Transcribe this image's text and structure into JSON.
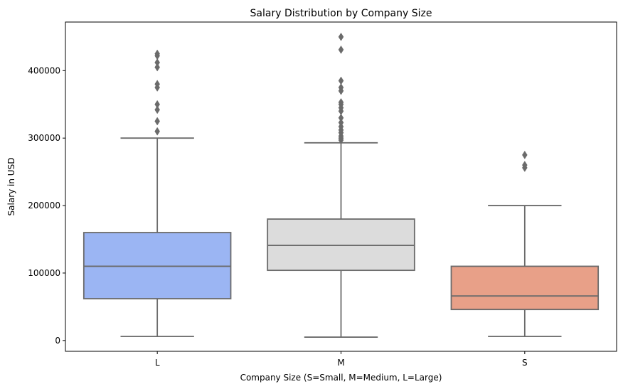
{
  "chart_data": {
    "type": "box",
    "title": "Salary Distribution by Company Size",
    "xlabel": "Company Size (S=Small, M=Medium, L=Large)",
    "ylabel": "Salary in USD",
    "ylim": [
      -16000,
      472000
    ],
    "yticks": [
      0,
      100000,
      200000,
      300000,
      400000
    ],
    "ytick_labels": [
      "0",
      "100000",
      "200000",
      "300000",
      "400000"
    ],
    "grid": false,
    "categories": [
      "L",
      "M",
      "S"
    ],
    "boxes": [
      {
        "category": "L",
        "color": "#9bb5f3",
        "whisker_low": 6000,
        "q1": 62000,
        "median": 110000,
        "q3": 160000,
        "whisker_high": 300000,
        "outliers": [
          310000,
          325000,
          342000,
          350000,
          375000,
          380000,
          405000,
          412000,
          422000,
          425000
        ]
      },
      {
        "category": "M",
        "color": "#dcdcdc",
        "whisker_low": 5000,
        "q1": 104000,
        "median": 141000,
        "q3": 180000,
        "whisker_high": 293000,
        "outliers": [
          297000,
          300000,
          303000,
          308000,
          312000,
          317000,
          323000,
          330000,
          340000,
          345000,
          350000,
          353000,
          370000,
          375000,
          385000,
          431000,
          450000
        ]
      },
      {
        "category": "S",
        "color": "#e8a088",
        "whisker_low": 6000,
        "q1": 46000,
        "median": 66000,
        "q3": 110000,
        "whisker_high": 200000,
        "outliers": [
          256000,
          260000,
          275000
        ]
      }
    ]
  }
}
